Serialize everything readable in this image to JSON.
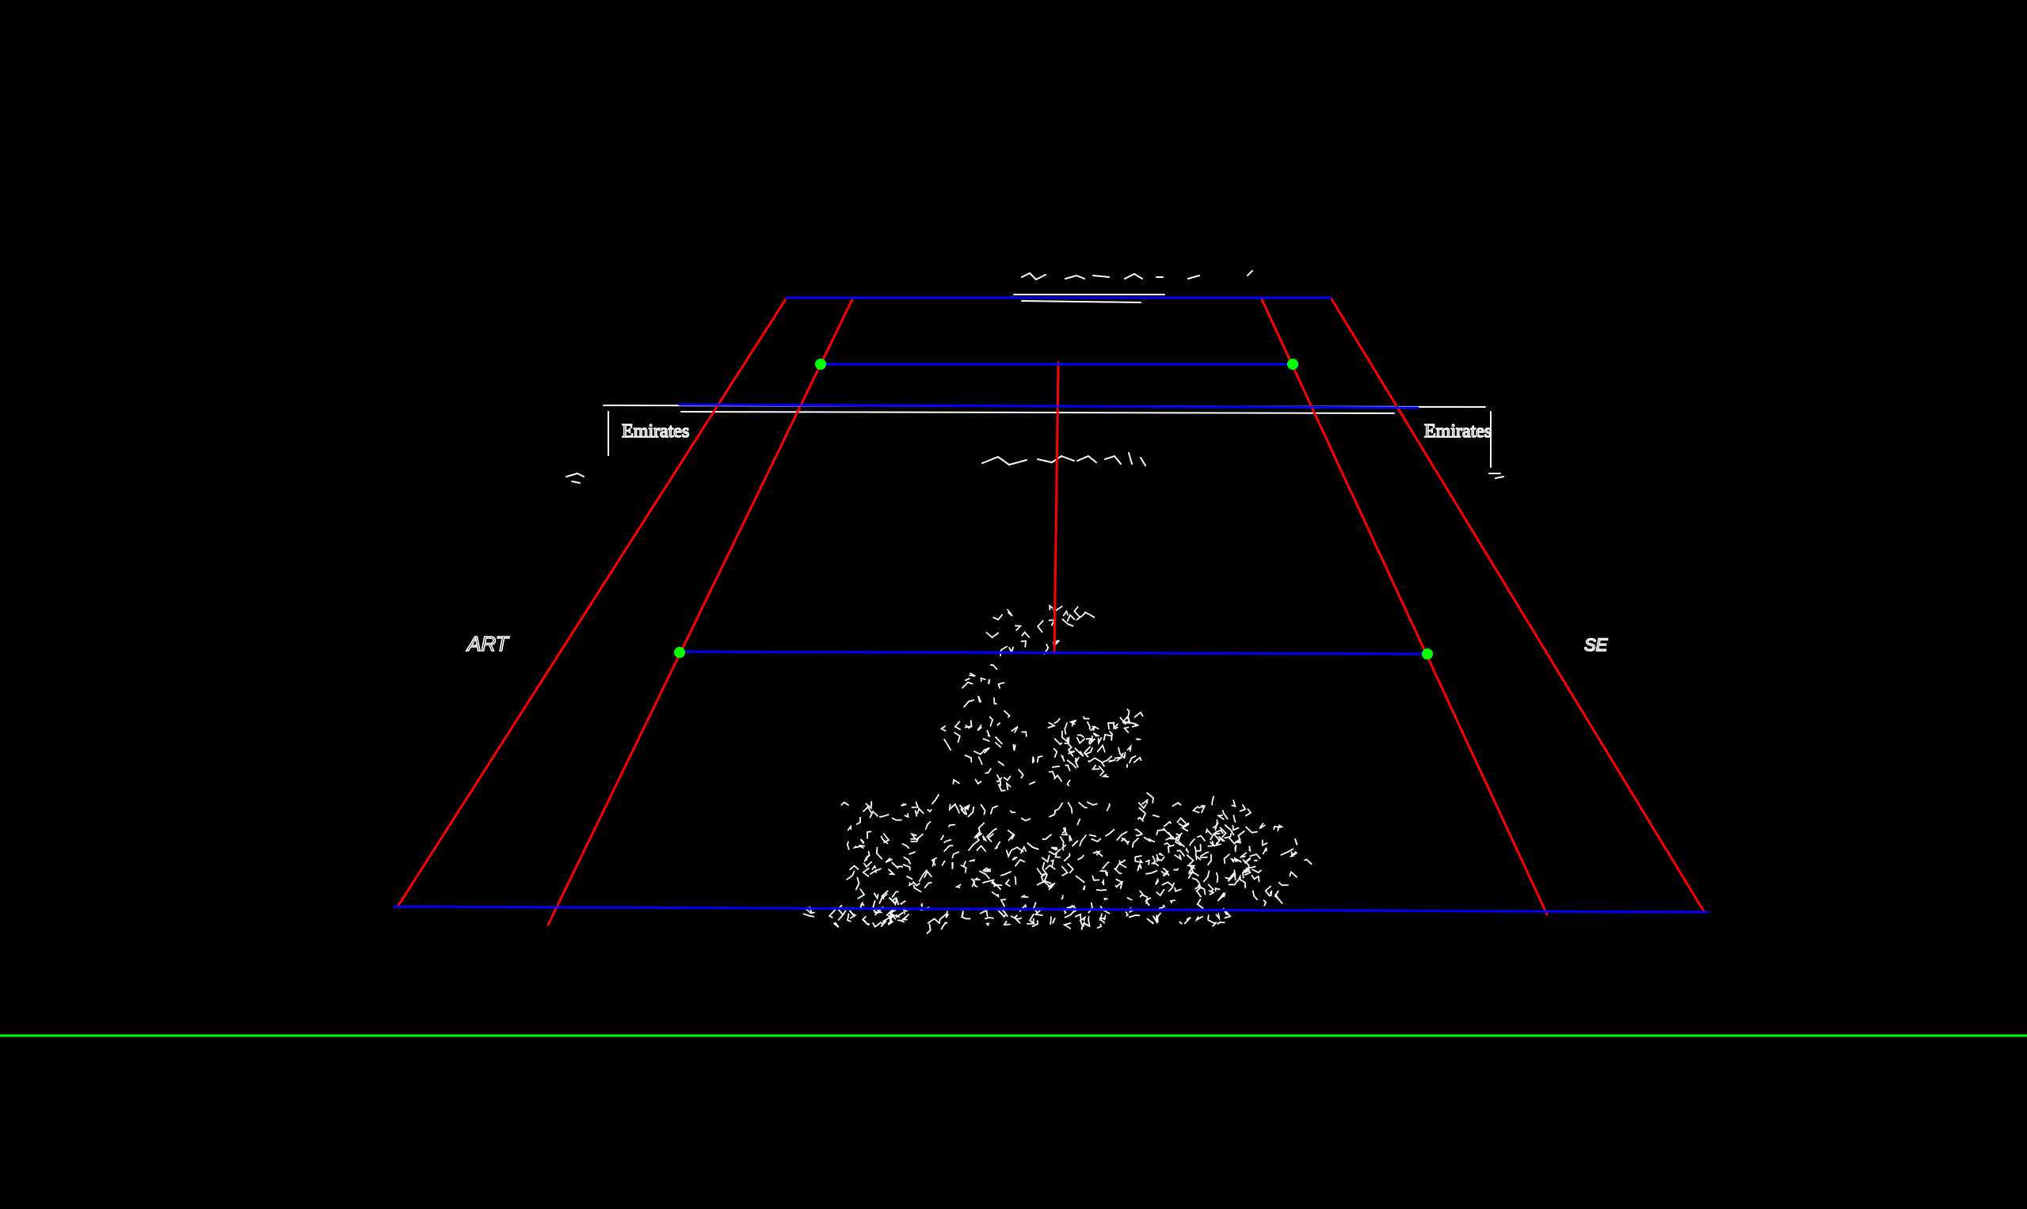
{
  "scene": {
    "background_color": "#000000",
    "edge_color": "#ffffff",
    "sideline_color": "#ff0000",
    "court_line_color": "#0000ff",
    "keypoint_color": "#00ff00",
    "reference_line_color": "#00ff00"
  },
  "banners": {
    "left_brand": "Emirates",
    "right_brand": "Emirates",
    "left_side_text": "ART",
    "right_side_text": "SE"
  }
}
